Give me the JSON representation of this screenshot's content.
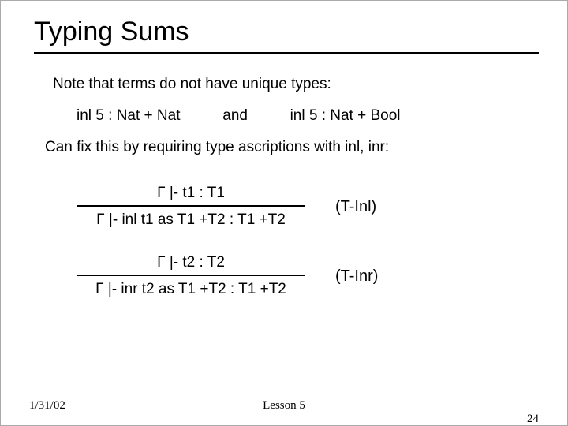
{
  "title": "Typing Sums",
  "note": "Note that terms do not have unique types:",
  "example_left": "inl 5 : Nat + Nat",
  "example_mid": "and",
  "example_right": "inl 5 : Nat + Bool",
  "fixnote": "Can fix this by requiring type ascriptions with inl, inr:",
  "rules": {
    "inl": {
      "premise": "Γ |- t1 : T1",
      "conclusion": "Γ |- inl t1 as T1 +T2 : T1 +T2",
      "label": "(T-Inl)"
    },
    "inr": {
      "premise": "Γ |- t2 : T2",
      "conclusion": "Γ |- inr t2 as T1 +T2 : T1 +T2",
      "label": "(T-Inr)"
    }
  },
  "footer": {
    "date": "1/31/02",
    "center": "Lesson 5",
    "page": "24"
  },
  "colors": {
    "background": "#ffffff",
    "text": "#000000",
    "rule_line": "#000000"
  }
}
